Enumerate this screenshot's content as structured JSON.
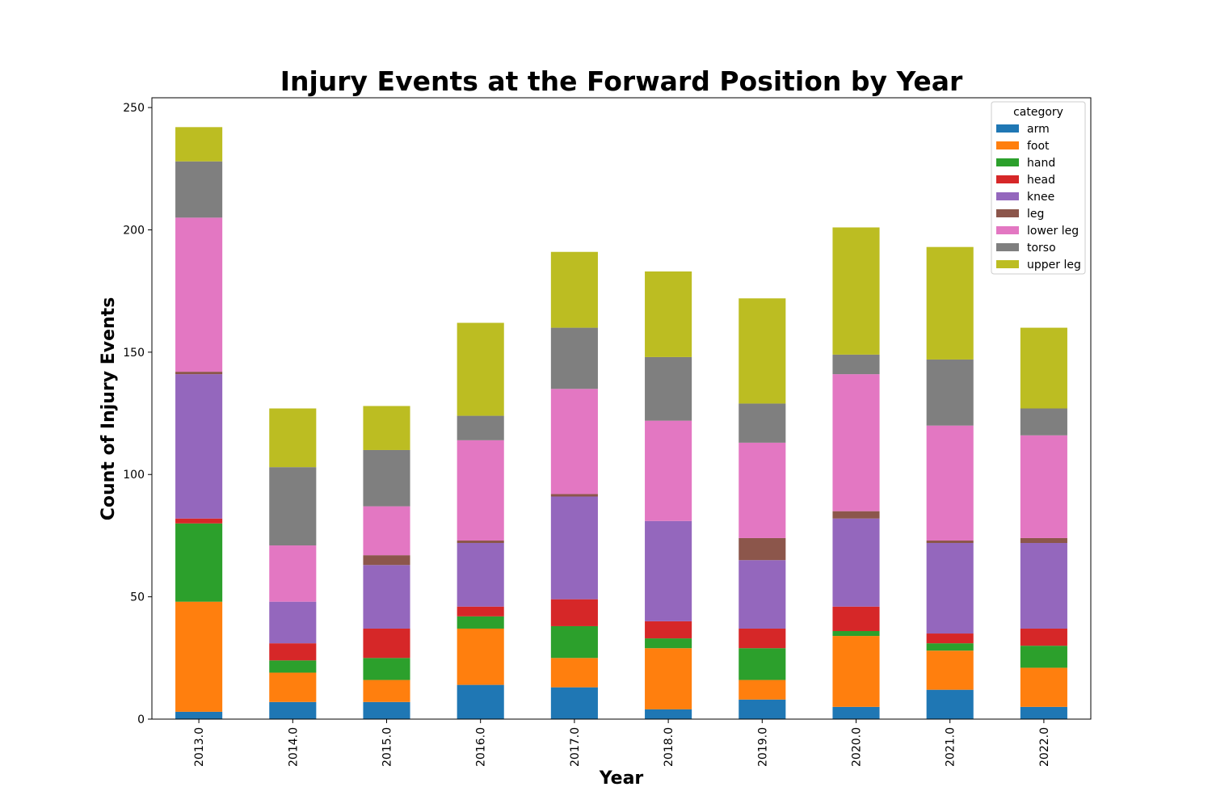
{
  "chart_data": {
    "type": "bar",
    "stacked": true,
    "title": "Injury Events at the Forward Position by Year",
    "xlabel": "Year",
    "ylabel": "Count of Injury Events",
    "ylim": [
      0,
      254
    ],
    "yticks": [
      0,
      50,
      100,
      150,
      200,
      250
    ],
    "grid": false,
    "legend_title": "category",
    "legend_position": "top-right",
    "categories": [
      "2013.0",
      "2014.0",
      "2015.0",
      "2016.0",
      "2017.0",
      "2018.0",
      "2019.0",
      "2020.0",
      "2021.0",
      "2022.0"
    ],
    "series": [
      {
        "name": "arm",
        "color": "#1f77b4",
        "values": [
          3,
          7,
          7,
          14,
          13,
          4,
          8,
          5,
          12,
          5
        ]
      },
      {
        "name": "foot",
        "color": "#ff7f0e",
        "values": [
          45,
          12,
          9,
          23,
          12,
          25,
          8,
          29,
          16,
          16
        ]
      },
      {
        "name": "hand",
        "color": "#2ca02c",
        "values": [
          32,
          5,
          9,
          5,
          13,
          4,
          13,
          2,
          3,
          9
        ]
      },
      {
        "name": "head",
        "color": "#d62728",
        "values": [
          2,
          7,
          12,
          4,
          11,
          7,
          8,
          10,
          4,
          7
        ]
      },
      {
        "name": "knee",
        "color": "#9467bd",
        "values": [
          59,
          17,
          26,
          26,
          42,
          41,
          28,
          36,
          37,
          35
        ]
      },
      {
        "name": "leg",
        "color": "#8c564b",
        "values": [
          1,
          0,
          4,
          1,
          1,
          0,
          9,
          3,
          1,
          2
        ]
      },
      {
        "name": "lower leg",
        "color": "#e377c2",
        "values": [
          63,
          23,
          20,
          41,
          43,
          41,
          39,
          56,
          47,
          42
        ]
      },
      {
        "name": "torso",
        "color": "#7f7f7f",
        "values": [
          23,
          32,
          23,
          10,
          25,
          26,
          16,
          8,
          27,
          11
        ]
      },
      {
        "name": "upper leg",
        "color": "#bcbd22",
        "values": [
          14,
          24,
          18,
          38,
          31,
          35,
          43,
          52,
          46,
          33
        ]
      }
    ]
  }
}
